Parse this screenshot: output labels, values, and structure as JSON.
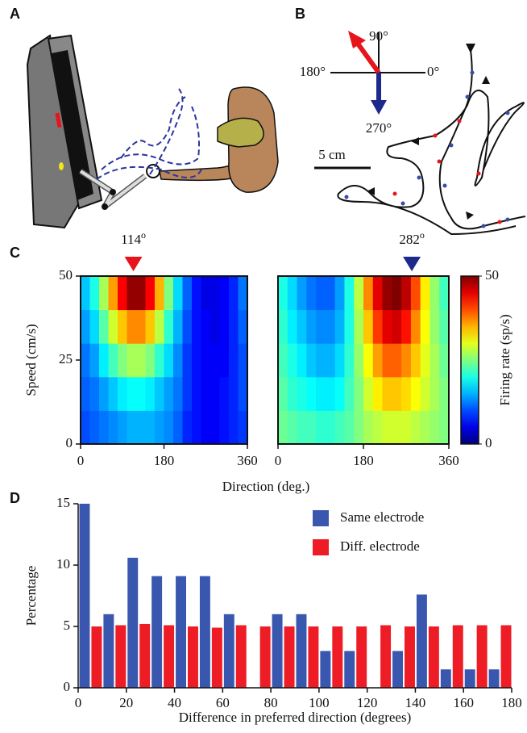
{
  "panel_labels": {
    "a": "A",
    "b": "B",
    "c": "C",
    "d": "D"
  },
  "compass": {
    "north": "90°",
    "west": "180°",
    "east": "0°",
    "south": "270°"
  },
  "scale_bar": "5 cm",
  "chart_data": [
    {
      "type": "heatmap",
      "ylabel": "Speed (cm/s)",
      "xlabel": "Direction (deg.)",
      "marker": {
        "value": 114,
        "unit": "o",
        "color": "#e8141c"
      },
      "x": [
        10,
        30,
        50,
        70,
        90,
        110,
        130,
        150,
        170,
        190,
        210,
        230,
        250,
        270,
        290,
        310,
        330,
        350
      ],
      "y": [
        5,
        15,
        25,
        35,
        45
      ],
      "z": [
        [
          10,
          11,
          12,
          13,
          14,
          15,
          15,
          15,
          14,
          13,
          11,
          8,
          7,
          6,
          6,
          7,
          8,
          9
        ],
        [
          11,
          12,
          14,
          16,
          18,
          19,
          19,
          18,
          16,
          14,
          12,
          9,
          7,
          6,
          6,
          7,
          8,
          10
        ],
        [
          12,
          14,
          18,
          22,
          25,
          27,
          27,
          25,
          21,
          17,
          13,
          9,
          7,
          6,
          6,
          6,
          8,
          10
        ],
        [
          14,
          17,
          23,
          29,
          34,
          37,
          37,
          34,
          28,
          21,
          15,
          10,
          7,
          6,
          5,
          6,
          8,
          11
        ],
        [
          16,
          20,
          27,
          36,
          44,
          49,
          49,
          44,
          35,
          25,
          17,
          11,
          7,
          5,
          5,
          6,
          8,
          12
        ]
      ],
      "xlim": [
        0,
        360
      ],
      "xticks": [
        0,
        180,
        360
      ],
      "ylim": [
        0,
        50
      ],
      "yticks": [
        0,
        25,
        50
      ]
    },
    {
      "type": "heatmap",
      "marker": {
        "value": 282,
        "unit": "o",
        "color": "#1d2a8c"
      },
      "x": [
        10,
        30,
        50,
        70,
        90,
        110,
        130,
        150,
        170,
        190,
        210,
        230,
        250,
        270,
        290,
        310,
        330,
        350
      ],
      "y": [
        5,
        15,
        25,
        35,
        45
      ],
      "z": [
        [
          24,
          23,
          22,
          22,
          21,
          21,
          22,
          23,
          25,
          27,
          28,
          29,
          29,
          29,
          28,
          27,
          26,
          25
        ],
        [
          23,
          21,
          20,
          19,
          18,
          18,
          19,
          22,
          25,
          29,
          32,
          34,
          34,
          33,
          31,
          29,
          27,
          25
        ],
        [
          22,
          20,
          18,
          16,
          15,
          15,
          17,
          21,
          26,
          31,
          36,
          39,
          39,
          37,
          34,
          30,
          27,
          24
        ],
        [
          21,
          18,
          16,
          14,
          13,
          13,
          15,
          20,
          27,
          34,
          41,
          45,
          46,
          43,
          37,
          31,
          26,
          23
        ],
        [
          20,
          17,
          14,
          12,
          11,
          11,
          14,
          20,
          28,
          37,
          45,
          49,
          50,
          47,
          40,
          32,
          26,
          22
        ]
      ],
      "xlim": [
        0,
        360
      ],
      "xticks": [
        0,
        180,
        360
      ],
      "ylim": [
        0,
        50
      ],
      "colorbar": {
        "label": "Firing rate (sp/s)",
        "lim": [
          0,
          50
        ],
        "ticks": [
          0,
          50
        ]
      }
    },
    {
      "type": "histogram",
      "xlabel": "Difference in preferred direction (degrees)",
      "ylabel": "Percentage",
      "bins": [
        0,
        10,
        20,
        30,
        40,
        50,
        60,
        70,
        80,
        90,
        100,
        110,
        120,
        130,
        140,
        150,
        160,
        170,
        180
      ],
      "series": [
        {
          "name": "Same electrode",
          "color": "#3a57b0",
          "values": [
            15,
            6,
            10.6,
            9.1,
            9.1,
            9.1,
            6,
            0,
            6,
            6,
            3,
            3,
            0,
            3,
            7.6,
            1.5,
            1.5,
            1.5
          ]
        },
        {
          "name": "Diff. electrode",
          "color": "#ee1c25",
          "values": [
            5,
            5.1,
            5.2,
            5.1,
            5,
            4.9,
            5.1,
            5,
            5,
            5,
            5,
            5,
            5.1,
            5,
            5,
            5.1,
            5.1,
            5.1
          ]
        }
      ],
      "xlim": [
        0,
        180
      ],
      "xticks": [
        0,
        20,
        40,
        60,
        80,
        100,
        120,
        140,
        160,
        180
      ],
      "ylim": [
        0,
        15
      ],
      "yticks": [
        0,
        5,
        10,
        15
      ],
      "legend": "upper right"
    }
  ]
}
